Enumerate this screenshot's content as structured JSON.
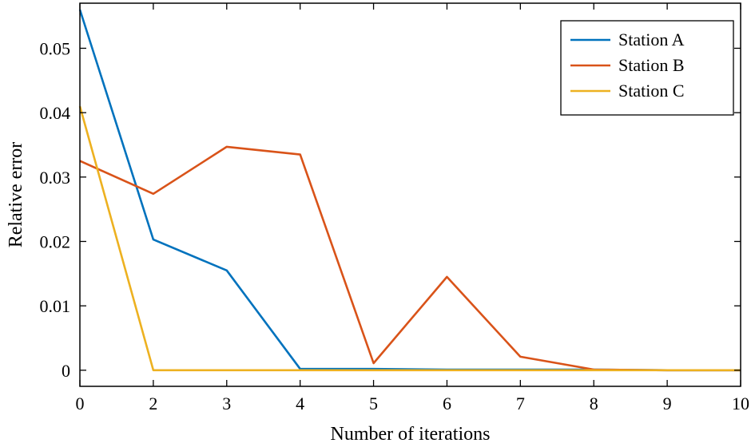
{
  "chart_data": {
    "type": "line",
    "x": [
      0,
      2,
      3,
      4,
      5,
      6,
      7,
      8,
      9,
      10
    ],
    "x_tick_labels": [
      "0",
      "2",
      "3",
      "4",
      "5",
      "6",
      "7",
      "8",
      "9",
      "10"
    ],
    "y_ticks": [
      0,
      0.01,
      0.02,
      0.03,
      0.04,
      0.05
    ],
    "y_tick_labels": [
      "0",
      "0.01",
      "0.02",
      "0.03",
      "0.04",
      "0.05"
    ],
    "ylim": [
      -0.0025,
      0.057
    ],
    "xlabel": "Number of iterations",
    "ylabel": "Relative error",
    "grid": false,
    "legend_position": "top-right",
    "series": [
      {
        "name": "Station A",
        "color": "#0072BD",
        "values": [
          0.056,
          0.0203,
          0.0155,
          0.0002,
          0.0002,
          0.0001,
          0.0001,
          0.0001,
          0.0,
          0.0
        ]
      },
      {
        "name": "Station B",
        "color": "#D95319",
        "values": [
          0.0325,
          0.0274,
          0.0347,
          0.0335,
          0.0011,
          0.0145,
          0.0021,
          0.0001,
          0.0,
          0.0
        ]
      },
      {
        "name": "Station C",
        "color": "#EDB120",
        "values": [
          0.041,
          0.0,
          0.0,
          0.0,
          0.0,
          0.0,
          0.0,
          0.0,
          0.0,
          0.0
        ]
      }
    ]
  }
}
